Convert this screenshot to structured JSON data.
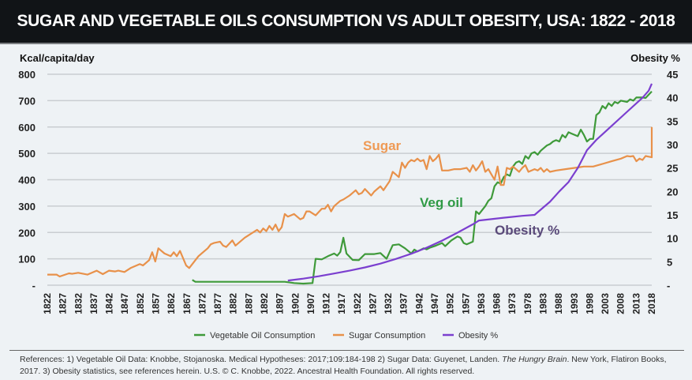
{
  "header": {
    "title": "SUGAR AND VEGETABLE OILS CONSUMPTION VS ADULT OBESITY, USA: 1822 - 2018"
  },
  "chart_data": {
    "type": "line",
    "title": "SUGAR AND VEGETABLE OILS CONSUMPTION VS ADULT OBESITY, USA: 1822 - 2018",
    "ylabel": "Kcal/capita/day",
    "y2label": "Obesity %",
    "ylim": [
      0,
      800
    ],
    "y2lim": [
      0,
      45
    ],
    "xlim": [
      1822,
      2018
    ],
    "grid": true,
    "legend_position": "bottom",
    "y_ticks": [
      "800",
      "700",
      "600",
      "500",
      "400",
      "300",
      "200",
      "100",
      "-"
    ],
    "y_tick_values": [
      800,
      700,
      600,
      500,
      400,
      300,
      200,
      100,
      0
    ],
    "y2_ticks": [
      "45",
      "40",
      "35",
      "30",
      "25",
      "20",
      "15",
      "10",
      "5",
      "-"
    ],
    "y2_tick_values": [
      45,
      40,
      35,
      30,
      25,
      20,
      15,
      10,
      5,
      0
    ],
    "x_ticks": [
      "1822",
      "1827",
      "1832",
      "1837",
      "1842",
      "1847",
      "1852",
      "1857",
      "1862",
      "1867",
      "1872",
      "1877",
      "1882",
      "1887",
      "1892",
      "1897",
      "1902",
      "1907",
      "1912",
      "1917",
      "1922",
      "1927",
      "1932",
      "1937",
      "1942",
      "1947",
      "1952",
      "1957",
      "1963",
      "1968",
      "1973",
      "1978",
      "1983",
      "1988",
      "1993",
      "1998",
      "2003",
      "2008",
      "2013",
      "2018"
    ],
    "series": [
      {
        "name": "Vegetable Oil Consumption",
        "axis": "left",
        "color": "#3f9a3a",
        "points": [
          [
            1869,
            20
          ],
          [
            1870,
            13
          ],
          [
            1880,
            13
          ],
          [
            1890,
            13
          ],
          [
            1899,
            13
          ],
          [
            1902,
            8
          ],
          [
            1905,
            6
          ],
          [
            1908,
            8
          ],
          [
            1909,
            100
          ],
          [
            1911,
            98
          ],
          [
            1913,
            110
          ],
          [
            1915,
            120
          ],
          [
            1916,
            112
          ],
          [
            1917,
            126
          ],
          [
            1918,
            180
          ],
          [
            1919,
            120
          ],
          [
            1921,
            96
          ],
          [
            1923,
            95
          ],
          [
            1925,
            118
          ],
          [
            1928,
            118
          ],
          [
            1930,
            122
          ],
          [
            1932,
            100
          ],
          [
            1934,
            152
          ],
          [
            1936,
            155
          ],
          [
            1938,
            140
          ],
          [
            1940,
            120
          ],
          [
            1941,
            135
          ],
          [
            1942,
            128
          ],
          [
            1944,
            140
          ],
          [
            1945,
            136
          ],
          [
            1946,
            142
          ],
          [
            1948,
            150
          ],
          [
            1950,
            160
          ],
          [
            1951,
            148
          ],
          [
            1953,
            170
          ],
          [
            1955,
            185
          ],
          [
            1956,
            180
          ],
          [
            1957,
            160
          ],
          [
            1958,
            155
          ],
          [
            1960,
            165
          ],
          [
            1961,
            280
          ],
          [
            1962,
            270
          ],
          [
            1964,
            300
          ],
          [
            1965,
            320
          ],
          [
            1966,
            330
          ],
          [
            1967,
            375
          ],
          [
            1968,
            390
          ],
          [
            1969,
            385
          ],
          [
            1970,
            410
          ],
          [
            1971,
            420
          ],
          [
            1972,
            415
          ],
          [
            1973,
            450
          ],
          [
            1974,
            465
          ],
          [
            1975,
            470
          ],
          [
            1976,
            460
          ],
          [
            1977,
            490
          ],
          [
            1978,
            480
          ],
          [
            1979,
            500
          ],
          [
            1980,
            505
          ],
          [
            1981,
            495
          ],
          [
            1982,
            510
          ],
          [
            1983,
            520
          ],
          [
            1984,
            530
          ],
          [
            1985,
            535
          ],
          [
            1986,
            545
          ],
          [
            1987,
            550
          ],
          [
            1988,
            545
          ],
          [
            1989,
            570
          ],
          [
            1990,
            560
          ],
          [
            1991,
            580
          ],
          [
            1992,
            575
          ],
          [
            1993,
            570
          ],
          [
            1994,
            565
          ],
          [
            1995,
            590
          ],
          [
            1996,
            570
          ],
          [
            1997,
            545
          ],
          [
            1998,
            555
          ],
          [
            1999,
            555
          ],
          [
            2000,
            645
          ],
          [
            2001,
            655
          ],
          [
            2002,
            680
          ],
          [
            2003,
            670
          ],
          [
            2004,
            690
          ],
          [
            2005,
            680
          ],
          [
            2006,
            695
          ],
          [
            2007,
            690
          ],
          [
            2008,
            700
          ],
          [
            2010,
            695
          ],
          [
            2011,
            705
          ],
          [
            2012,
            700
          ],
          [
            2013,
            712
          ],
          [
            2015,
            712
          ],
          [
            2016,
            710
          ],
          [
            2018,
            735
          ]
        ]
      },
      {
        "name": "Sugar Consumption",
        "axis": "left",
        "color": "#e8914a",
        "points": [
          [
            1822,
            40
          ],
          [
            1825,
            40
          ],
          [
            1826,
            33
          ],
          [
            1829,
            45
          ],
          [
            1830,
            43
          ],
          [
            1832,
            47
          ],
          [
            1835,
            40
          ],
          [
            1838,
            55
          ],
          [
            1840,
            42
          ],
          [
            1842,
            55
          ],
          [
            1844,
            52
          ],
          [
            1845,
            55
          ],
          [
            1847,
            50
          ],
          [
            1849,
            65
          ],
          [
            1852,
            80
          ],
          [
            1853,
            75
          ],
          [
            1855,
            95
          ],
          [
            1856,
            125
          ],
          [
            1857,
            90
          ],
          [
            1858,
            140
          ],
          [
            1860,
            120
          ],
          [
            1862,
            110
          ],
          [
            1863,
            125
          ],
          [
            1864,
            110
          ],
          [
            1865,
            130
          ],
          [
            1867,
            75
          ],
          [
            1868,
            65
          ],
          [
            1871,
            110
          ],
          [
            1872,
            120
          ],
          [
            1874,
            140
          ],
          [
            1875,
            155
          ],
          [
            1876,
            160
          ],
          [
            1878,
            165
          ],
          [
            1879,
            150
          ],
          [
            1880,
            145
          ],
          [
            1882,
            170
          ],
          [
            1883,
            150
          ],
          [
            1886,
            180
          ],
          [
            1888,
            195
          ],
          [
            1890,
            210
          ],
          [
            1891,
            200
          ],
          [
            1892,
            215
          ],
          [
            1893,
            205
          ],
          [
            1894,
            225
          ],
          [
            1895,
            210
          ],
          [
            1896,
            230
          ],
          [
            1897,
            205
          ],
          [
            1898,
            220
          ],
          [
            1899,
            270
          ],
          [
            1900,
            260
          ],
          [
            1901,
            265
          ],
          [
            1902,
            270
          ],
          [
            1904,
            250
          ],
          [
            1905,
            255
          ],
          [
            1906,
            280
          ],
          [
            1907,
            280
          ],
          [
            1909,
            265
          ],
          [
            1911,
            290
          ],
          [
            1912,
            290
          ],
          [
            1913,
            305
          ],
          [
            1914,
            280
          ],
          [
            1915,
            300
          ],
          [
            1917,
            320
          ],
          [
            1918,
            325
          ],
          [
            1920,
            340
          ],
          [
            1921,
            350
          ],
          [
            1922,
            360
          ],
          [
            1923,
            345
          ],
          [
            1924,
            350
          ],
          [
            1925,
            365
          ],
          [
            1927,
            340
          ],
          [
            1928,
            355
          ],
          [
            1930,
            375
          ],
          [
            1931,
            360
          ],
          [
            1933,
            395
          ],
          [
            1934,
            430
          ],
          [
            1935,
            420
          ],
          [
            1936,
            410
          ],
          [
            1937,
            465
          ],
          [
            1938,
            445
          ],
          [
            1939,
            465
          ],
          [
            1940,
            475
          ],
          [
            1941,
            470
          ],
          [
            1942,
            480
          ],
          [
            1943,
            470
          ],
          [
            1944,
            475
          ],
          [
            1945,
            440
          ],
          [
            1946,
            490
          ],
          [
            1947,
            470
          ],
          [
            1948,
            480
          ],
          [
            1949,
            495
          ],
          [
            1950,
            435
          ],
          [
            1952,
            435
          ],
          [
            1954,
            440
          ],
          [
            1956,
            440
          ],
          [
            1958,
            445
          ],
          [
            1959,
            430
          ],
          [
            1960,
            455
          ],
          [
            1961,
            435
          ],
          [
            1962,
            450
          ],
          [
            1963,
            470
          ],
          [
            1964,
            430
          ],
          [
            1965,
            440
          ],
          [
            1966,
            420
          ],
          [
            1967,
            400
          ],
          [
            1968,
            450
          ],
          [
            1969,
            380
          ],
          [
            1970,
            380
          ],
          [
            1971,
            445
          ],
          [
            1972,
            440
          ],
          [
            1973,
            450
          ],
          [
            1975,
            430
          ],
          [
            1976,
            445
          ],
          [
            1977,
            455
          ],
          [
            1978,
            430
          ],
          [
            1980,
            440
          ],
          [
            1981,
            435
          ],
          [
            1982,
            445
          ],
          [
            1983,
            430
          ],
          [
            1984,
            440
          ],
          [
            1985,
            430
          ],
          [
            1987,
            435
          ],
          [
            1990,
            440
          ],
          [
            1993,
            445
          ],
          [
            1996,
            450
          ],
          [
            1999,
            450
          ],
          [
            2002,
            460
          ],
          [
            2005,
            470
          ],
          [
            2008,
            480
          ],
          [
            2010,
            490
          ],
          [
            2011,
            488
          ],
          [
            2012,
            490
          ],
          [
            2013,
            470
          ],
          [
            2014,
            480
          ],
          [
            2015,
            475
          ],
          [
            2016,
            490
          ],
          [
            2018,
            485
          ],
          [
            2020,
            495
          ],
          [
            2022,
            505
          ],
          [
            2024,
            510
          ],
          [
            2026,
            510
          ],
          [
            2028,
            525
          ],
          [
            2030,
            540
          ],
          [
            2032,
            545
          ],
          [
            2034,
            560
          ],
          [
            2036,
            570
          ],
          [
            2038,
            580
          ],
          [
            2040,
            600
          ]
        ]
      },
      {
        "name": "Obesity %",
        "axis": "right",
        "color": "#7b3fcf",
        "points": [
          [
            1900,
            1.0
          ],
          [
            1905,
            1.4
          ],
          [
            1910,
            1.9
          ],
          [
            1915,
            2.5
          ],
          [
            1920,
            3.1
          ],
          [
            1925,
            3.8
          ],
          [
            1930,
            4.6
          ],
          [
            1935,
            5.6
          ],
          [
            1940,
            6.7
          ],
          [
            1945,
            8.0
          ],
          [
            1950,
            9.5
          ],
          [
            1955,
            11.2
          ],
          [
            1960,
            13.0
          ],
          [
            1962,
            13.8
          ],
          [
            1970,
            14.4
          ],
          [
            1976,
            14.8
          ],
          [
            1980,
            15.0
          ],
          [
            1985,
            17.8
          ],
          [
            1988,
            20.0
          ],
          [
            1991,
            22.0
          ],
          [
            1994,
            25.0
          ],
          [
            1997,
            28.8
          ],
          [
            2000,
            31.0
          ],
          [
            2005,
            34.0
          ],
          [
            2010,
            37.0
          ],
          [
            2015,
            40.0
          ],
          [
            2017,
            41.5
          ],
          [
            2018,
            43.0
          ]
        ]
      }
    ],
    "annotations": [
      {
        "text": "Sugar",
        "color": "#ef9a55"
      },
      {
        "text": "Veg oil",
        "color": "#2f9a45"
      },
      {
        "text": "Obesity %",
        "color": "#5a4a7a"
      }
    ]
  },
  "legend": {
    "items": [
      {
        "label": "Vegetable Oil Consumption",
        "color": "#3f9a3a"
      },
      {
        "label": "Sugar Consumption",
        "color": "#e8914a"
      },
      {
        "label": "Obesity %",
        "color": "#7b3fcf"
      }
    ]
  },
  "footer": {
    "refs_part1": "References: 1) Vegetable Oil Data: Knobbe, Stojanoska. Medical Hypotheses: 2017;109:184-198  2) Sugar Data: Guyenet, Landen. ",
    "refs_italic": "The Hungry Brain",
    "refs_part2": ". New York, Flatiron Books, 2017.  3) Obesity statistics, see references herein. U.S. © C. Knobbe, 2022. Ancestral Health Foundation. All rights reserved."
  }
}
